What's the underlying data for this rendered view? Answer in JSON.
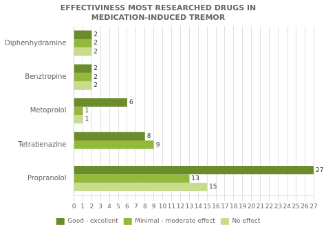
{
  "chart_data": {
    "type": "bar",
    "orientation": "horizontal",
    "title": "EFFECTIVINESS MOST RESEARCHED DRUGS IN\nMEDICATION-INDUCED TREMOR",
    "categories": [
      "Diphenhydramine",
      "Benztropine",
      "Metoprolol",
      "Tetrabenazine",
      "Propranolol"
    ],
    "series": [
      {
        "name": "Good - excellent",
        "color": "#6b8c2a",
        "values": [
          2,
          2,
          6,
          8,
          27
        ]
      },
      {
        "name": "Minimal - moderate effect",
        "color": "#93b93a",
        "values": [
          2,
          2,
          1,
          9,
          13
        ]
      },
      {
        "name": "No effect",
        "color": "#c9dc8e",
        "values": [
          2,
          2,
          1,
          0,
          15
        ]
      }
    ],
    "xlim": [
      0,
      27
    ],
    "xticks": [
      0,
      1,
      2,
      3,
      4,
      5,
      6,
      7,
      8,
      9,
      10,
      11,
      12,
      13,
      14,
      15,
      16,
      17,
      18,
      19,
      20,
      21,
      22,
      23,
      24,
      25,
      26,
      27
    ],
    "grid": true,
    "legend": "bottom",
    "data_labels": true
  }
}
